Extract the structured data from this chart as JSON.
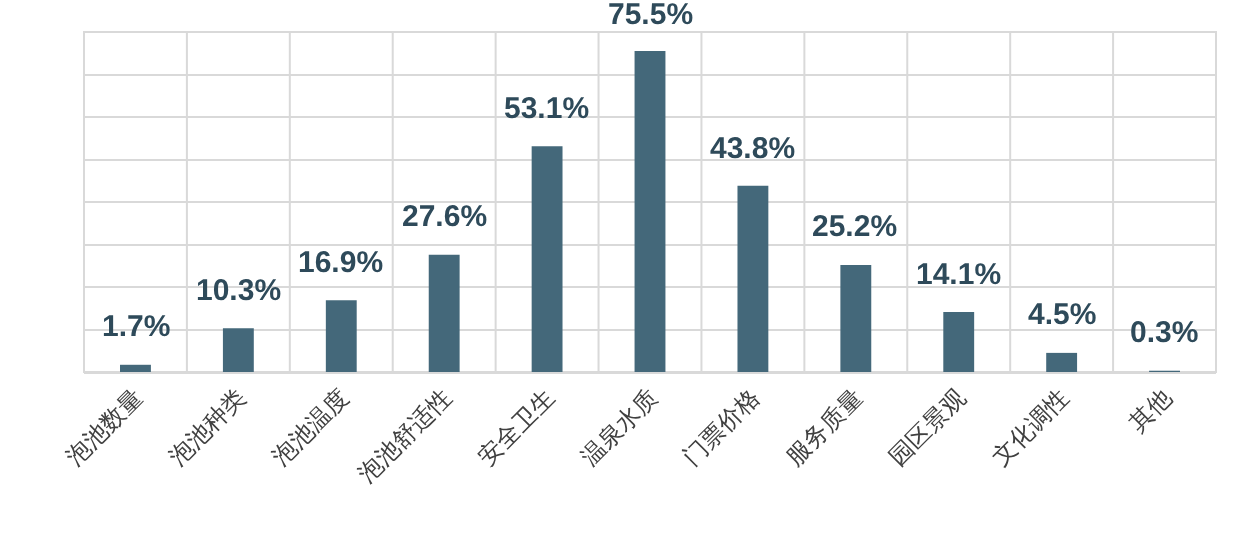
{
  "chart_data": {
    "type": "bar",
    "categories": [
      "泡池数量",
      "泡池种类",
      "泡池温度",
      "泡池舒适性",
      "安全卫生",
      "温泉水质",
      "门票价格",
      "服务质量",
      "园区景观",
      "文化调性",
      "其他"
    ],
    "values": [
      1.7,
      10.3,
      16.9,
      27.6,
      53.1,
      75.5,
      43.8,
      25.2,
      14.1,
      4.5,
      0.3
    ],
    "value_labels": [
      "1.7%",
      "10.3%",
      "16.9%",
      "27.6%",
      "53.1%",
      "75.5%",
      "43.8%",
      "25.2%",
      "14.1%",
      "4.5%",
      "0.3%"
    ],
    "color": "#44687a",
    "ylim": [
      0,
      80
    ],
    "yticks": [
      {
        "value": 0,
        "label": null
      },
      {
        "value": 10,
        "label": null
      },
      {
        "value": 20,
        "label": null
      },
      {
        "value": 30,
        "label": null
      },
      {
        "value": 40,
        "label": null
      },
      {
        "value": 50,
        "label": null
      },
      {
        "value": 60,
        "label": null
      },
      {
        "value": 70,
        "label": null
      }
    ],
    "grid": true,
    "tick_labels": "x"
  }
}
